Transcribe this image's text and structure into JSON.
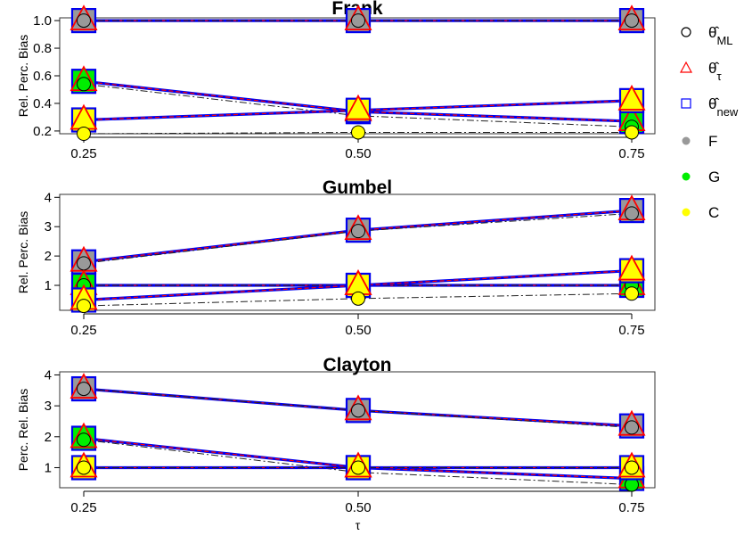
{
  "x_title": "τ",
  "estimator_symbol": "θ̂",
  "legend": {
    "estimators": [
      {
        "key": "ml",
        "subscript": "ML",
        "marker": "open-circle",
        "color": "#000000"
      },
      {
        "key": "tau",
        "subscript": "τ",
        "marker": "open-triangle",
        "color": "#ff0000"
      },
      {
        "key": "new",
        "subscript": "new",
        "marker": "open-square",
        "color": "#0000ff"
      }
    ],
    "copulas": [
      {
        "key": "F",
        "label": "F",
        "color": "#999999"
      },
      {
        "key": "G",
        "label": "G",
        "color": "#00ee00"
      },
      {
        "key": "C",
        "label": "C",
        "color": "#ffff00"
      }
    ]
  },
  "chart_data": [
    {
      "type": "line",
      "title": "Frank",
      "xlabel": "",
      "ylabel": "Rel. Perc. Bias",
      "x": [
        0.25,
        0.5,
        0.75
      ],
      "x_tick_labels": [
        "0.25",
        "0.50",
        "0.75"
      ],
      "ylim": [
        0.18,
        1.02
      ],
      "y_ticks": [
        0.2,
        0.4,
        0.6,
        0.8,
        1.0
      ],
      "y_tick_labels": [
        "0.2",
        "0.4",
        "0.6",
        "0.8",
        "1.0"
      ],
      "series": [
        {
          "copula": "F",
          "ml": [
            1.0,
            1.0,
            1.0
          ],
          "tau": [
            1.0,
            1.0,
            1.0
          ],
          "new": [
            1.0,
            1.0,
            1.0
          ]
        },
        {
          "copula": "G",
          "ml": [
            0.54,
            0.31,
            0.23
          ],
          "tau": [
            0.56,
            0.34,
            0.27
          ],
          "new": [
            0.56,
            0.34,
            0.27
          ]
        },
        {
          "copula": "C",
          "ml": [
            0.18,
            0.19,
            0.19
          ],
          "tau": [
            0.28,
            0.35,
            0.42
          ],
          "new": [
            0.28,
            0.35,
            0.42
          ]
        }
      ]
    },
    {
      "type": "line",
      "title": "Gumbel",
      "xlabel": "",
      "ylabel": "Rel. Perc. Bias",
      "x": [
        0.25,
        0.5,
        0.75
      ],
      "x_tick_labels": [
        "0.25",
        "0.50",
        "0.75"
      ],
      "ylim": [
        0.15,
        4.1
      ],
      "y_ticks": [
        1,
        2,
        3,
        4
      ],
      "y_tick_labels": [
        "1",
        "2",
        "3",
        "4"
      ],
      "series": [
        {
          "copula": "F",
          "ml": [
            1.75,
            2.85,
            3.45
          ],
          "tau": [
            1.8,
            2.88,
            3.55
          ],
          "new": [
            1.8,
            2.88,
            3.55
          ]
        },
        {
          "copula": "G",
          "ml": [
            1.0,
            1.0,
            1.0
          ],
          "tau": [
            1.0,
            1.0,
            1.0
          ],
          "new": [
            1.0,
            1.0,
            1.0
          ]
        },
        {
          "copula": "C",
          "ml": [
            0.3,
            0.55,
            0.72
          ],
          "tau": [
            0.5,
            1.0,
            1.5
          ],
          "new": [
            0.5,
            1.0,
            1.5
          ]
        }
      ]
    },
    {
      "type": "line",
      "title": "Clayton",
      "xlabel": "τ",
      "ylabel": "Perc. Rel. Bias",
      "x": [
        0.25,
        0.5,
        0.75
      ],
      "x_tick_labels": [
        "0.25",
        "0.50",
        "0.75"
      ],
      "ylim": [
        0.35,
        4.1
      ],
      "y_ticks": [
        1,
        2,
        3,
        4
      ],
      "y_tick_labels": [
        "1",
        "2",
        "3",
        "4"
      ],
      "series": [
        {
          "copula": "F",
          "ml": [
            3.55,
            2.85,
            2.3
          ],
          "tau": [
            3.55,
            2.85,
            2.35
          ],
          "new": [
            3.55,
            2.85,
            2.35
          ]
        },
        {
          "copula": "G",
          "ml": [
            1.9,
            0.85,
            0.45
          ],
          "tau": [
            1.95,
            1.0,
            0.65
          ],
          "new": [
            1.95,
            1.0,
            0.65
          ]
        },
        {
          "copula": "C",
          "ml": [
            1.0,
            1.0,
            1.0
          ],
          "tau": [
            1.0,
            1.0,
            1.0
          ],
          "new": [
            1.0,
            1.0,
            1.0
          ]
        }
      ]
    }
  ]
}
